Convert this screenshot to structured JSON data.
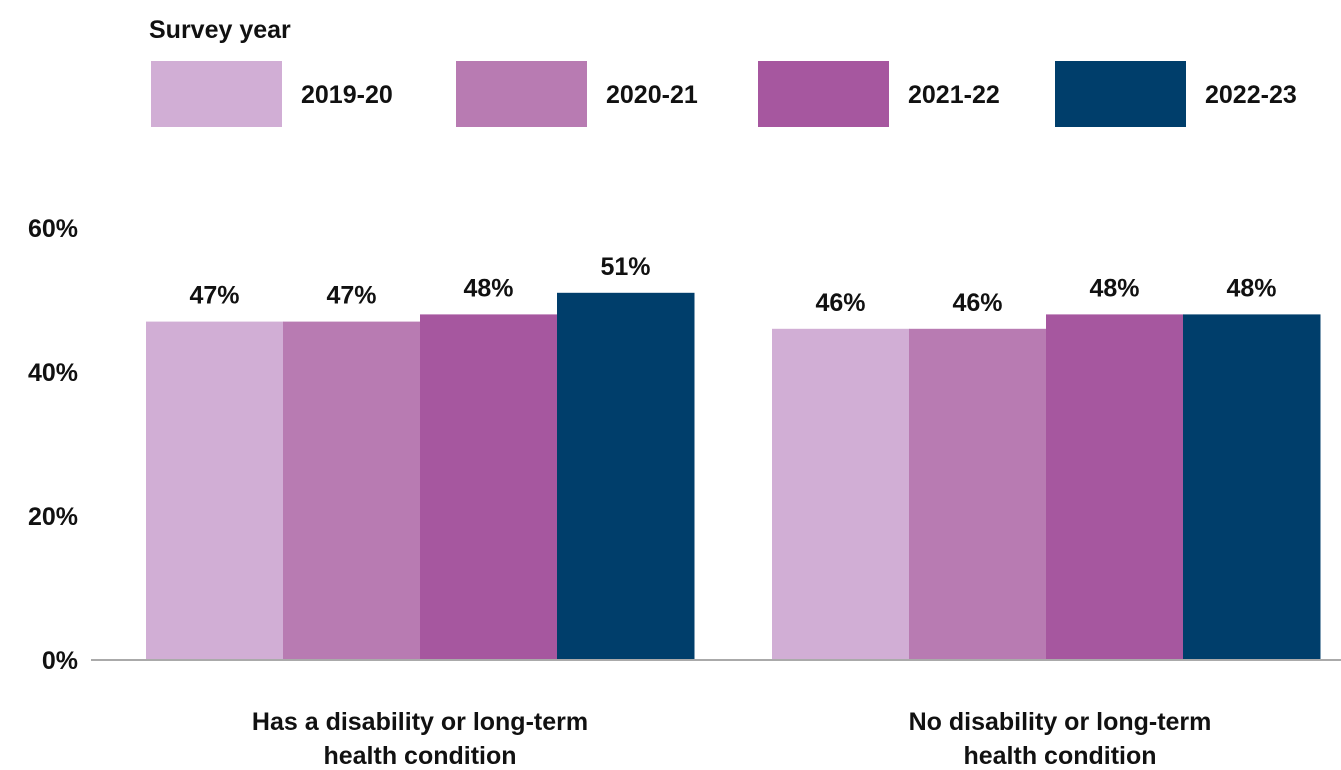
{
  "chart_data": {
    "type": "bar",
    "legend_title": "Survey year",
    "legend_position": "top",
    "categories": [
      [
        "Has a disability or long-term",
        "health condition"
      ],
      [
        "No disability or long-term",
        "health condition"
      ]
    ],
    "series": [
      {
        "name": "2019-20",
        "color": "#d1aed5",
        "values": [
          47,
          46
        ],
        "labels": [
          "47%",
          "46%"
        ]
      },
      {
        "name": "2020-21",
        "color": "#b87bb2",
        "values": [
          47,
          46
        ],
        "labels": [
          "47%",
          "46%"
        ]
      },
      {
        "name": "2021-22",
        "color": "#a6579f",
        "values": [
          48,
          48
        ],
        "labels": [
          "48%",
          "48%"
        ]
      },
      {
        "name": "2022-23",
        "color": "#003e6b",
        "values": [
          51,
          48
        ],
        "labels": [
          "51%",
          "48%"
        ]
      }
    ],
    "yticks": [
      0,
      20,
      40,
      60
    ],
    "ytick_labels": [
      "0%",
      "20%",
      "40%",
      "60%"
    ],
    "ylim": [
      0,
      60
    ],
    "grid": false
  }
}
